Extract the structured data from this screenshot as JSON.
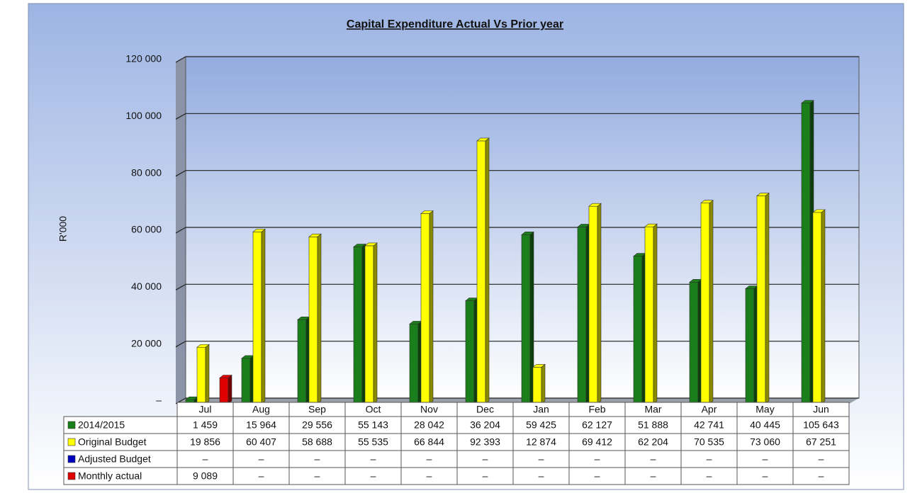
{
  "chart_data": {
    "type": "bar",
    "title": "Capital Expenditure  Actual Vs Prior year",
    "y_label": "R'000",
    "categories": [
      "Jul",
      "Aug",
      "Sep",
      "Oct",
      "Nov",
      "Dec",
      "Jan",
      "Feb",
      "Mar",
      "Apr",
      "May",
      "Jun"
    ],
    "series": [
      {
        "name": "2014/2015",
        "color": "#1a7f1a",
        "values": [
          1459,
          15964,
          29556,
          55143,
          28042,
          36204,
          59425,
          62127,
          51888,
          42741,
          40445,
          105643
        ],
        "value_labels": [
          "1 459",
          "15 964",
          "29 556",
          "55 143",
          "28 042",
          "36 204",
          "59 425",
          "62 127",
          "51 888",
          "42 741",
          "40 445",
          "105 643"
        ]
      },
      {
        "name": "Original Budget",
        "color": "#ffff00",
        "values": [
          19856,
          60407,
          58688,
          55535,
          66844,
          92393,
          12874,
          69412,
          62204,
          70535,
          73060,
          67251
        ],
        "value_labels": [
          "19 856",
          "60 407",
          "58 688",
          "55 535",
          "66 844",
          "92 393",
          "12 874",
          "69 412",
          "62 204",
          "70 535",
          "73 060",
          "67 251"
        ]
      },
      {
        "name": "Adjusted Budget",
        "color": "#0000c0",
        "values": [
          null,
          null,
          null,
          null,
          null,
          null,
          null,
          null,
          null,
          null,
          null,
          null
        ],
        "value_labels": [
          "–",
          "–",
          "–",
          "–",
          "–",
          "–",
          "–",
          "–",
          "–",
          "–",
          "–",
          "–"
        ]
      },
      {
        "name": "Monthly actual",
        "color": "#e00000",
        "values": [
          9089,
          null,
          null,
          null,
          null,
          null,
          null,
          null,
          null,
          null,
          null,
          null
        ],
        "value_labels": [
          "9 089",
          "–",
          "–",
          "–",
          "–",
          "–",
          "–",
          "–",
          "–",
          "–",
          "–",
          "–"
        ]
      }
    ],
    "ylim": [
      0,
      120000
    ],
    "yticks": [
      {
        "value": 0,
        "label": "–"
      },
      {
        "value": 20000,
        "label": "20 000"
      },
      {
        "value": 40000,
        "label": "40 000"
      },
      {
        "value": 60000,
        "label": "60 000"
      },
      {
        "value": 80000,
        "label": "80 000"
      },
      {
        "value": 100000,
        "label": "100 000"
      },
      {
        "value": 120000,
        "label": "120 000"
      }
    ],
    "grid": true
  }
}
